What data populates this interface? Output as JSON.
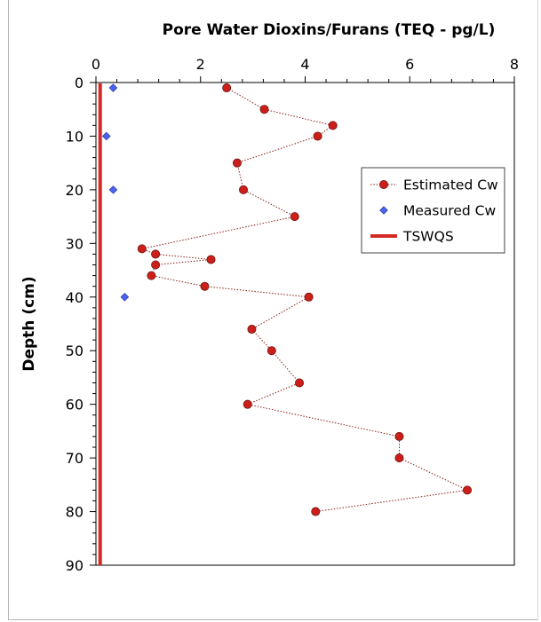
{
  "chart_data": {
    "type": "scatter",
    "title": "Pore Water Dioxins/Furans (TEQ - pg/L)",
    "ylabel": "Depth (cm)",
    "xlim": [
      0,
      8
    ],
    "ylim": [
      0,
      90
    ],
    "y_inverted": true,
    "x_ticks": [
      0,
      2,
      4,
      6,
      8
    ],
    "y_ticks": [
      0,
      10,
      20,
      30,
      40,
      50,
      60,
      70,
      80,
      90
    ],
    "legend_position": "right",
    "series": [
      {
        "name": "Estimated Cw",
        "style": "dotted-line-with-circle-markers",
        "color": "#cc1f1a",
        "points": [
          {
            "x": 2.5,
            "y": 1
          },
          {
            "x": 3.22,
            "y": 5
          },
          {
            "x": 4.53,
            "y": 8
          },
          {
            "x": 4.24,
            "y": 10
          },
          {
            "x": 2.7,
            "y": 15
          },
          {
            "x": 2.82,
            "y": 20
          },
          {
            "x": 3.8,
            "y": 25
          },
          {
            "x": 0.88,
            "y": 31
          },
          {
            "x": 1.14,
            "y": 32
          },
          {
            "x": 2.2,
            "y": 33
          },
          {
            "x": 1.14,
            "y": 34
          },
          {
            "x": 1.06,
            "y": 36
          },
          {
            "x": 2.08,
            "y": 38
          },
          {
            "x": 4.07,
            "y": 40
          },
          {
            "x": 2.98,
            "y": 46
          },
          {
            "x": 3.36,
            "y": 50
          },
          {
            "x": 3.89,
            "y": 56
          },
          {
            "x": 2.9,
            "y": 60
          },
          {
            "x": 5.8,
            "y": 66
          },
          {
            "x": 5.8,
            "y": 70
          },
          {
            "x": 7.1,
            "y": 76
          },
          {
            "x": 4.2,
            "y": 80
          }
        ]
      },
      {
        "name": "Measured Cw",
        "style": "diamond-markers",
        "color": "#4a63f0",
        "points": [
          {
            "x": 0.33,
            "y": 1
          },
          {
            "x": 0.2,
            "y": 10
          },
          {
            "x": 0.33,
            "y": 20
          },
          {
            "x": 0.55,
            "y": 40
          }
        ]
      },
      {
        "name": "TSWQS",
        "style": "solid-vertical-line",
        "color": "#d42a25",
        "x": 0.08
      }
    ]
  }
}
